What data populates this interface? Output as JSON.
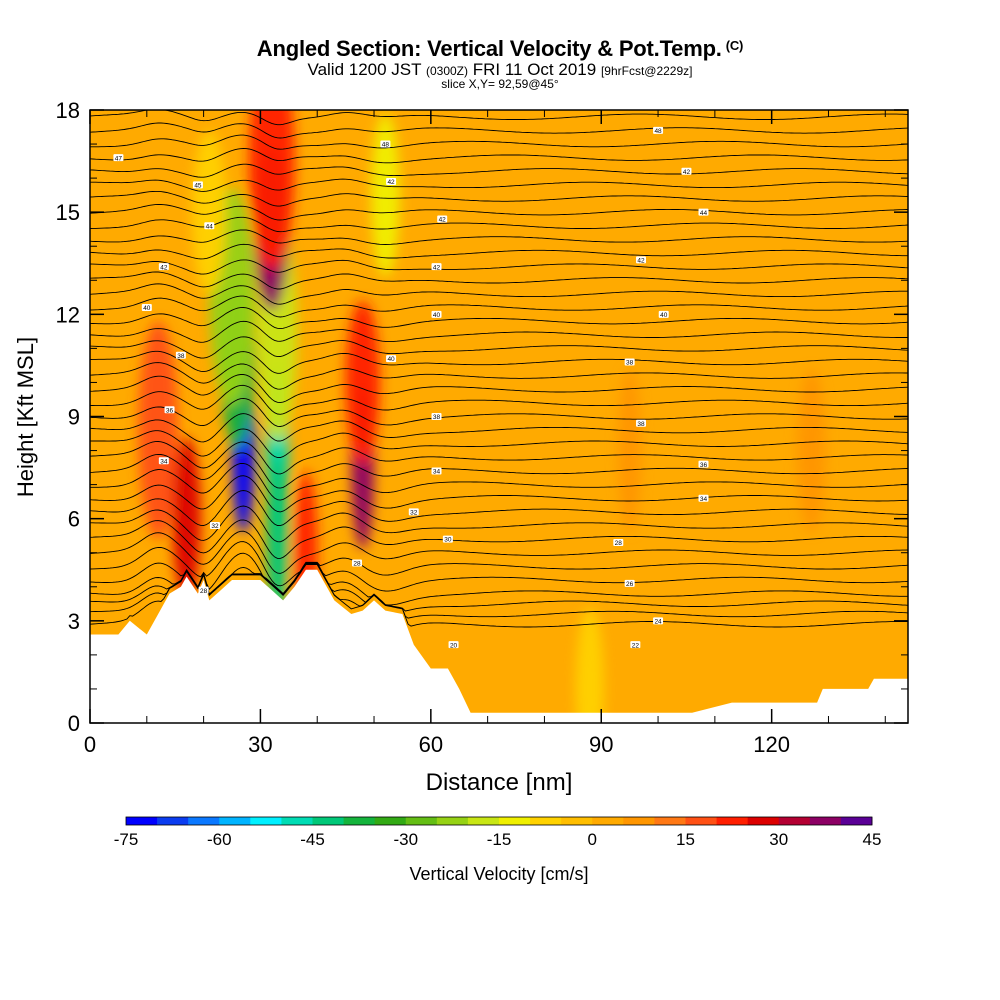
{
  "header": {
    "title": "Angled Section: Vertical Velocity & Pot.Temp.",
    "title_tag": "(C)",
    "valid_label": "Valid 1200 JST",
    "utc_tag": "(0300Z)",
    "date": "FRI 11 Oct 2019",
    "forecast_tag": "[9hrFcst@2229z]",
    "slice": "slice X,Y= 92,59@45°"
  },
  "chart_data": {
    "type": "heatmap",
    "xlabel": "Distance [nm]",
    "ylabel": "Height [Kft MSL]",
    "xlim": [
      0,
      144
    ],
    "ylim": [
      0,
      18
    ],
    "x_ticks": [
      0,
      30,
      60,
      90,
      120
    ],
    "y_ticks": [
      0,
      3,
      6,
      9,
      12,
      15,
      18
    ],
    "colorbar": {
      "label": "Vertical Velocity [cm/s]",
      "ticks": [
        -75,
        -60,
        -45,
        -30,
        -15,
        0,
        15,
        30,
        45
      ],
      "bins": [
        -75,
        -70,
        -65,
        -60,
        -55,
        -50,
        -45,
        -40,
        -35,
        -30,
        -25,
        -20,
        -15,
        -10,
        -5,
        0,
        5,
        10,
        15,
        20,
        25,
        30,
        35,
        40,
        45
      ],
      "colors": [
        "#0000ff",
        "#0a3cf0",
        "#0a78ff",
        "#00b4ff",
        "#00f0ff",
        "#00dcb4",
        "#00c878",
        "#14b43c",
        "#32aa14",
        "#64be14",
        "#96d214",
        "#c8e614",
        "#f0f000",
        "#ffd200",
        "#ffbe00",
        "#ffaa00",
        "#ff9600",
        "#ff7814",
        "#ff5014",
        "#ff1e00",
        "#dc0000",
        "#b40032",
        "#8c0064",
        "#5a0096"
      ]
    },
    "background_w": 3,
    "velocity_cells": [
      {
        "x": 12,
        "y": 8.6,
        "w": 7,
        "v": 18
      },
      {
        "x": 17,
        "y": 6.0,
        "w": 5,
        "v": 28
      },
      {
        "x": 27,
        "y": 8.0,
        "w": 4,
        "v": -72
      },
      {
        "x": 26,
        "y": 10.5,
        "w": 6,
        "v": -40
      },
      {
        "x": 25,
        "y": 12.5,
        "w": 8,
        "v": -22
      },
      {
        "x": 33,
        "y": 8.0,
        "w": 4,
        "v": -50
      },
      {
        "x": 33,
        "y": 5.5,
        "w": 4,
        "v": -45
      },
      {
        "x": 33,
        "y": 11.5,
        "w": 7,
        "v": -18
      },
      {
        "x": 32,
        "y": 14.5,
        "w": 6,
        "v": 38
      },
      {
        "x": 32,
        "y": 16.5,
        "w": 8,
        "v": 22
      },
      {
        "x": 48,
        "y": 7.5,
        "w": 4,
        "v": 38
      },
      {
        "x": 48,
        "y": 10.0,
        "w": 6,
        "v": 22
      },
      {
        "x": 52,
        "y": 15.5,
        "w": 5,
        "v": -15
      },
      {
        "x": 38,
        "y": 5.0,
        "w": 4,
        "v": 20
      },
      {
        "x": 21,
        "y": 15.0,
        "w": 6,
        "v": -10
      },
      {
        "x": 95,
        "y": 8.0,
        "w": 4,
        "v": 9
      },
      {
        "x": 127,
        "y": 8.0,
        "w": 5,
        "v": 8
      },
      {
        "x": 88,
        "y": 1.0,
        "w": 5,
        "v": -6
      }
    ],
    "terrain": [
      [
        0,
        2.6
      ],
      [
        5,
        2.6
      ],
      [
        7,
        3.0
      ],
      [
        10,
        2.6
      ],
      [
        12,
        3.2
      ],
      [
        14,
        3.8
      ],
      [
        16,
        4.0
      ],
      [
        17,
        4.3
      ],
      [
        19,
        3.8
      ],
      [
        20,
        4.2
      ],
      [
        21,
        3.6
      ],
      [
        23,
        3.9
      ],
      [
        25,
        4.2
      ],
      [
        28,
        4.2
      ],
      [
        30,
        4.2
      ],
      [
        34,
        3.6
      ],
      [
        36,
        4.0
      ],
      [
        38,
        4.5
      ],
      [
        40,
        4.5
      ],
      [
        43,
        3.6
      ],
      [
        46,
        3.2
      ],
      [
        48,
        3.3
      ],
      [
        50,
        3.6
      ],
      [
        52,
        3.3
      ],
      [
        55,
        3.2
      ],
      [
        57,
        2.3
      ],
      [
        60,
        1.6
      ],
      [
        63,
        1.6
      ],
      [
        65,
        1.0
      ],
      [
        67,
        0.3
      ],
      [
        106,
        0.3
      ],
      [
        113,
        0.6
      ],
      [
        128,
        0.6
      ],
      [
        129,
        1.0
      ],
      [
        137,
        1.0
      ],
      [
        138,
        1.3
      ],
      [
        144,
        1.3
      ]
    ],
    "isentropes": {
      "base_y": [
        2.9,
        3.2,
        3.5,
        3.8,
        4.2,
        4.6,
        5.0,
        5.4,
        5.8,
        6.2,
        6.6,
        7.0,
        7.4,
        7.8,
        8.2,
        8.6,
        9.0,
        9.4,
        9.8,
        10.2,
        10.6,
        11.0,
        11.4,
        11.8,
        12.2,
        12.6,
        13.0,
        13.4,
        13.8,
        14.2,
        14.6,
        15.0,
        15.4,
        15.8,
        16.2,
        16.6,
        17.0,
        17.4,
        17.8
      ],
      "labels": [
        {
          "x": 64,
          "y": 2.3,
          "text": "20"
        },
        {
          "x": 96,
          "y": 2.3,
          "text": "22"
        },
        {
          "x": 100,
          "y": 3.0,
          "text": "24"
        },
        {
          "x": 95,
          "y": 4.1,
          "text": "26"
        },
        {
          "x": 93,
          "y": 5.3,
          "text": "28"
        },
        {
          "x": 63,
          "y": 5.4,
          "text": "30"
        },
        {
          "x": 57,
          "y": 6.2,
          "text": "32"
        },
        {
          "x": 108,
          "y": 6.6,
          "text": "34"
        },
        {
          "x": 61,
          "y": 7.4,
          "text": "34"
        },
        {
          "x": 108,
          "y": 7.6,
          "text": "36"
        },
        {
          "x": 97,
          "y": 8.8,
          "text": "38"
        },
        {
          "x": 61,
          "y": 9.0,
          "text": "38"
        },
        {
          "x": 95,
          "y": 10.6,
          "text": "38"
        },
        {
          "x": 53,
          "y": 10.7,
          "text": "40"
        },
        {
          "x": 101,
          "y": 12.0,
          "text": "40"
        },
        {
          "x": 61,
          "y": 12.0,
          "text": "40"
        },
        {
          "x": 97,
          "y": 13.6,
          "text": "42"
        },
        {
          "x": 61,
          "y": 13.4,
          "text": "42"
        },
        {
          "x": 62,
          "y": 14.8,
          "text": "42"
        },
        {
          "x": 108,
          "y": 15.0,
          "text": "44"
        },
        {
          "x": 53,
          "y": 15.9,
          "text": "42"
        },
        {
          "x": 105,
          "y": 16.2,
          "text": "42"
        },
        {
          "x": 52,
          "y": 17.0,
          "text": "48"
        },
        {
          "x": 100,
          "y": 17.4,
          "text": "48"
        },
        {
          "x": 5,
          "y": 16.6,
          "text": "47"
        },
        {
          "x": 19,
          "y": 15.8,
          "text": "45"
        },
        {
          "x": 21,
          "y": 14.6,
          "text": "44"
        },
        {
          "x": 13,
          "y": 13.4,
          "text": "42"
        },
        {
          "x": 10,
          "y": 12.2,
          "text": "40"
        },
        {
          "x": 16,
          "y": 10.8,
          "text": "38"
        },
        {
          "x": 14,
          "y": 9.2,
          "text": "36"
        },
        {
          "x": 13,
          "y": 7.7,
          "text": "34"
        },
        {
          "x": 22,
          "y": 5.8,
          "text": "32"
        },
        {
          "x": 20,
          "y": 3.9,
          "text": "28"
        },
        {
          "x": 47,
          "y": 4.7,
          "text": "28"
        }
      ]
    }
  }
}
